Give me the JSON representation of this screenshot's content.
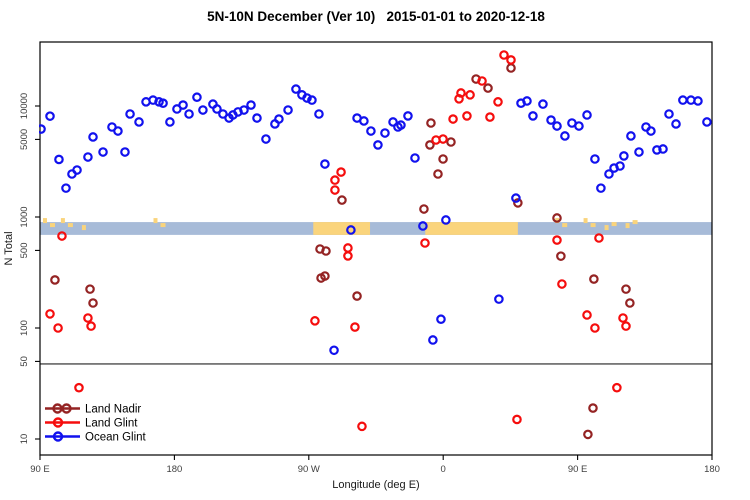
{
  "title": "5N-10N December (Ver 10)   2015-01-01 to 2020-12-18",
  "colors": {
    "land_nadir": "#942323",
    "land_glint": "#F50D0D",
    "ocean_glint": "#1111EE",
    "band_ocean": "#A7BBD8",
    "band_land": "#FAD47C",
    "reference_line": "#4a4a4a",
    "frame": "#000000",
    "tick_text": "#404040"
  },
  "chart_data": {
    "type": "scatter",
    "title": "5N-10N December (Ver 10)   2015-01-01 to 2020-12-18",
    "xlabel": "Longitude (deg E)",
    "ylabel": "N Total",
    "x_axis": {
      "note": "longitude axis wraps eastward from 90E through 180, 90W, 0, 90E to 180; stored as degrees 90-540 along axis",
      "range": [
        90,
        540
      ],
      "ticks": [
        90,
        180,
        270,
        360,
        450,
        540
      ],
      "tick_labels": [
        "90 E",
        "180",
        "90 W",
        "0",
        "90 E",
        "180"
      ]
    },
    "y_axis": {
      "scale": "log",
      "range": [
        8,
        35000
      ],
      "ticks": [
        10,
        50,
        100,
        500,
        1000,
        5000,
        10000
      ],
      "tick_labels": [
        "10",
        "50",
        "100",
        "500",
        "1000",
        "5000",
        "10000"
      ]
    },
    "reference_line_y": 50,
    "grid": false,
    "legend_position": "bottom-left",
    "map_band": {
      "value_top": 900,
      "value_bottom": 690,
      "land_segments": [
        {
          "from": 92,
          "to": 99,
          "style": "specks"
        },
        {
          "from": 104,
          "to": 121,
          "style": "specks"
        },
        {
          "from": 166,
          "to": 172,
          "style": "specks"
        },
        {
          "from": 273,
          "to": 311,
          "style": "solid"
        },
        {
          "from": 348,
          "to": 410,
          "style": "solid"
        },
        {
          "from": 435,
          "to": 440,
          "style": "specks"
        },
        {
          "from": 454,
          "to": 488,
          "style": "specks"
        }
      ]
    },
    "series": [
      {
        "name": "Land Nadir",
        "color_key": "land_nadir",
        "points": [
          [
            100.0,
            271
          ],
          [
            123.5,
            224
          ],
          [
            125.5,
            168
          ],
          [
            277.5,
            515
          ],
          [
            281.5,
            494
          ],
          [
            278.2,
            282
          ],
          [
            280.8,
            294
          ],
          [
            292.2,
            1420
          ],
          [
            302.3,
            194
          ],
          [
            347.1,
            1180
          ],
          [
            351.1,
            4460
          ],
          [
            351.8,
            7030
          ],
          [
            356.5,
            2440
          ],
          [
            359.9,
            3330
          ],
          [
            365.2,
            4740
          ],
          [
            382.0,
            17500
          ],
          [
            390.0,
            14500
          ],
          [
            405.4,
            22000
          ],
          [
            410.0,
            1340
          ],
          [
            436.2,
            980
          ],
          [
            438.8,
            444
          ],
          [
            456.9,
            11
          ],
          [
            460.3,
            19
          ],
          [
            460.9,
            276
          ],
          [
            482.4,
            224
          ],
          [
            485.0,
            168
          ]
        ]
      },
      {
        "name": "Land Glint",
        "color_key": "land_glint",
        "points": [
          [
            96.7,
            134
          ],
          [
            102.1,
            100
          ],
          [
            104.7,
            674
          ],
          [
            116.1,
            29
          ],
          [
            122.1,
            123
          ],
          [
            124.2,
            104
          ],
          [
            274.1,
            116
          ],
          [
            287.5,
            2150
          ],
          [
            287.5,
            1750
          ],
          [
            291.6,
            2540
          ],
          [
            296.2,
            526
          ],
          [
            296.2,
            446
          ],
          [
            300.9,
            102
          ],
          [
            305.6,
            13
          ],
          [
            347.8,
            583
          ],
          [
            355.2,
            4940
          ],
          [
            359.9,
            5040
          ],
          [
            366.6,
            7630
          ],
          [
            370.6,
            11600
          ],
          [
            371.9,
            13100
          ],
          [
            375.9,
            8140
          ],
          [
            378.0,
            12600
          ],
          [
            386.0,
            16800
          ],
          [
            391.3,
            7950
          ],
          [
            396.7,
            10900
          ],
          [
            400.7,
            28800
          ],
          [
            405.4,
            26000
          ],
          [
            409.4,
            15
          ],
          [
            436.2,
            620
          ],
          [
            439.5,
            249
          ],
          [
            456.3,
            131
          ],
          [
            461.6,
            100
          ],
          [
            464.3,
            647
          ],
          [
            476.3,
            29
          ],
          [
            480.4,
            123
          ],
          [
            482.4,
            104
          ]
        ]
      },
      {
        "name": "Ocean Glint",
        "color_key": "ocean_glint",
        "points": [
          [
            90.7,
            6200
          ],
          [
            96.7,
            8100
          ],
          [
            102.7,
            3300
          ],
          [
            107.4,
            1820
          ],
          [
            111.4,
            2440
          ],
          [
            114.8,
            2650
          ],
          [
            122.1,
            3470
          ],
          [
            125.5,
            5260
          ],
          [
            132.2,
            3850
          ],
          [
            138.2,
            6470
          ],
          [
            142.2,
            5950
          ],
          [
            146.9,
            3850
          ],
          [
            150.3,
            8470
          ],
          [
            156.3,
            7180
          ],
          [
            161.0,
            10900
          ],
          [
            165.7,
            11300
          ],
          [
            169.7,
            10900
          ],
          [
            172.4,
            10600
          ],
          [
            177.0,
            7180
          ],
          [
            181.7,
            9400
          ],
          [
            185.8,
            10200
          ],
          [
            189.8,
            8470
          ],
          [
            195.1,
            12000
          ],
          [
            199.1,
            9200
          ],
          [
            205.8,
            10400
          ],
          [
            208.5,
            9400
          ],
          [
            212.5,
            8470
          ],
          [
            216.6,
            7790
          ],
          [
            219.2,
            8300
          ],
          [
            222.6,
            8850
          ],
          [
            226.6,
            9200
          ],
          [
            231.3,
            10200
          ],
          [
            235.3,
            7790
          ],
          [
            241.3,
            5040
          ],
          [
            247.3,
            6890
          ],
          [
            250.0,
            7630
          ],
          [
            256.1,
            9200
          ],
          [
            261.4,
            14200
          ],
          [
            265.4,
            12600
          ],
          [
            268.8,
            11800
          ],
          [
            272.1,
            11300
          ],
          [
            276.8,
            8470
          ],
          [
            280.8,
            3000
          ],
          [
            286.9,
            63
          ],
          [
            298.2,
            764
          ],
          [
            302.3,
            7790
          ],
          [
            306.9,
            7330
          ],
          [
            311.6,
            5950
          ],
          [
            316.3,
            4460
          ],
          [
            321.0,
            5710
          ],
          [
            326.4,
            7180
          ],
          [
            329.7,
            6470
          ],
          [
            331.7,
            6730
          ],
          [
            336.4,
            8140
          ],
          [
            341.1,
            3400
          ],
          [
            346.4,
            830
          ],
          [
            353.1,
            78
          ],
          [
            358.5,
            120
          ],
          [
            361.8,
            940
          ],
          [
            397.3,
            182
          ],
          [
            408.7,
            1480
          ],
          [
            412.1,
            10600
          ],
          [
            416.1,
            11100
          ],
          [
            420.1,
            8140
          ],
          [
            426.8,
            10400
          ],
          [
            432.2,
            7470
          ],
          [
            436.2,
            6600
          ],
          [
            441.5,
            5370
          ],
          [
            446.2,
            7030
          ],
          [
            450.9,
            6600
          ],
          [
            456.3,
            8300
          ],
          [
            461.6,
            3330
          ],
          [
            465.6,
            1820
          ],
          [
            471.0,
            2440
          ],
          [
            474.4,
            2760
          ],
          [
            478.4,
            2880
          ],
          [
            481.0,
            3550
          ],
          [
            485.7,
            5370
          ],
          [
            491.1,
            3850
          ],
          [
            495.8,
            6470
          ],
          [
            499.1,
            5950
          ],
          [
            503.1,
            4020
          ],
          [
            507.2,
            4100
          ],
          [
            511.2,
            8470
          ],
          [
            515.9,
            6890
          ],
          [
            520.5,
            11300
          ],
          [
            525.9,
            11300
          ],
          [
            530.6,
            11100
          ],
          [
            536.6,
            7180
          ]
        ]
      }
    ],
    "legend_entries": [
      "Land Nadir",
      "Land Glint",
      "Ocean Glint"
    ]
  }
}
